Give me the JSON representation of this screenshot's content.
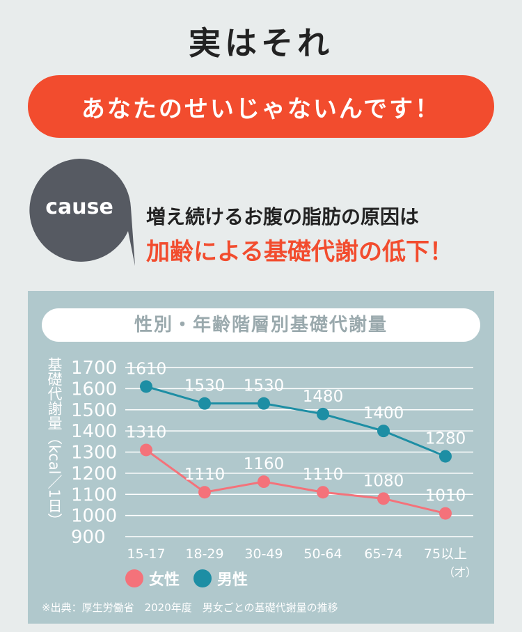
{
  "headline": "実はそれ",
  "banner": "あなたのせいじゃないんです！",
  "cause": {
    "label": "cause",
    "line1": "増え続けるお腹の脂肪の原因は",
    "line2": "加齢による基礎代謝の低下！"
  },
  "colors": {
    "accent": "#f24c2e",
    "female": "#f4727a",
    "male": "#1d8ea4",
    "panel": "#b0c8cc",
    "bubble": "#565a62"
  },
  "chart_data": {
    "type": "line",
    "title": "性別・年齢階層別基礎代謝量",
    "ylabel": "基礎代謝量（kcal／1日）",
    "ylim": [
      900,
      1700
    ],
    "yticks": [
      "1700",
      "1600",
      "1500",
      "1400",
      "1300",
      "1200",
      "1100",
      "1000",
      "900"
    ],
    "categories": [
      "15-17",
      "18-29",
      "30-49",
      "50-64",
      "65-74",
      "75以上"
    ],
    "category_suffix": "（才）",
    "series": [
      {
        "name": "女性",
        "values": [
          1310,
          1110,
          1160,
          1110,
          1080,
          1010
        ]
      },
      {
        "name": "男性",
        "values": [
          1610,
          1530,
          1530,
          1480,
          1400,
          1280
        ]
      }
    ],
    "source": "※出典：厚生労働省　2020年度　男女ごとの基礎代謝量の推移"
  }
}
